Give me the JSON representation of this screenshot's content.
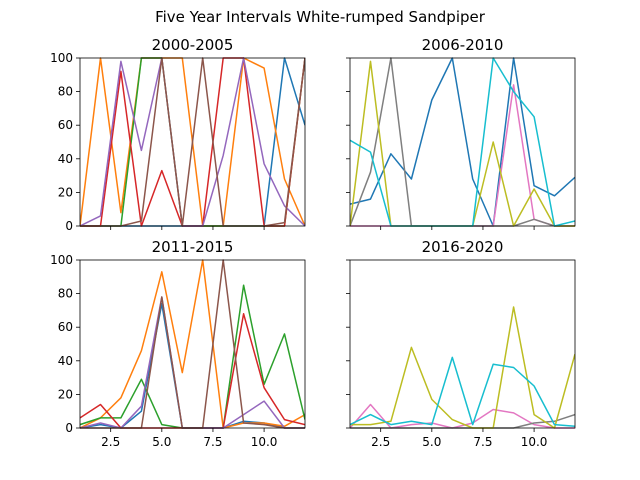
{
  "figure": {
    "title": "Five Year Intervals White-rumped Sandpiper"
  },
  "chart_data": [
    {
      "type": "line",
      "title": "2000-2005",
      "xlim": [
        1,
        12
      ],
      "ylim": [
        0,
        100
      ],
      "x": [
        1,
        2,
        3,
        4,
        5,
        6,
        7,
        8,
        9,
        10,
        11,
        12
      ],
      "series": [
        {
          "color": "#1f77b4",
          "values": [
            0,
            0,
            0,
            0,
            0,
            0,
            0,
            0,
            0,
            0,
            100,
            60
          ]
        },
        {
          "color": "#ff7f0e",
          "values": [
            0,
            100,
            8,
            100,
            100,
            100,
            0,
            0,
            100,
            94,
            28,
            0
          ]
        },
        {
          "color": "#2ca02c",
          "values": [
            0,
            0,
            0,
            100,
            100,
            0,
            0,
            0,
            0,
            0,
            0,
            100
          ]
        },
        {
          "color": "#d62728",
          "values": [
            0,
            0,
            92,
            0,
            33,
            0,
            0,
            100,
            100,
            0,
            0,
            100
          ]
        },
        {
          "color": "#9467bd",
          "values": [
            0,
            6,
            98,
            45,
            100,
            0,
            0,
            42,
            100,
            37,
            12,
            0
          ]
        },
        {
          "color": "#8c564b",
          "values": [
            0,
            0,
            0,
            3,
            100,
            0,
            100,
            0,
            0,
            0,
            2,
            100
          ]
        }
      ]
    },
    {
      "type": "line",
      "title": "2006-2010",
      "xlim": [
        1,
        12
      ],
      "ylim": [
        0,
        100
      ],
      "x": [
        1,
        2,
        3,
        4,
        5,
        6,
        7,
        8,
        9,
        10,
        11,
        12
      ],
      "series": [
        {
          "color": "#1f77b4",
          "values": [
            13,
            16,
            43,
            28,
            75,
            100,
            28,
            0,
            100,
            24,
            18,
            29
          ]
        },
        {
          "color": "#e377c2",
          "values": [
            0,
            0,
            0,
            0,
            0,
            0,
            0,
            0,
            84,
            4,
            0,
            0
          ]
        },
        {
          "color": "#7f7f7f",
          "values": [
            0,
            32,
            100,
            0,
            0,
            0,
            0,
            0,
            0,
            4,
            0,
            0
          ]
        },
        {
          "color": "#bcbd22",
          "values": [
            0,
            98,
            0,
            0,
            0,
            0,
            0,
            50,
            0,
            22,
            0,
            0
          ]
        },
        {
          "color": "#17becf",
          "values": [
            51,
            44,
            0,
            0,
            0,
            0,
            0,
            100,
            80,
            65,
            0,
            3
          ]
        }
      ]
    },
    {
      "type": "line",
      "title": "2011-2015",
      "xlim": [
        1,
        12
      ],
      "ylim": [
        0,
        100
      ],
      "x": [
        1,
        2,
        3,
        4,
        5,
        6,
        7,
        8,
        9,
        10,
        11,
        12
      ],
      "series": [
        {
          "color": "#1f77b4",
          "values": [
            0,
            2,
            0,
            10,
            74,
            0,
            0,
            0,
            4,
            3,
            0,
            0
          ]
        },
        {
          "color": "#ff7f0e",
          "values": [
            0,
            6,
            18,
            46,
            93,
            33,
            100,
            0,
            3,
            3,
            1,
            8
          ]
        },
        {
          "color": "#2ca02c",
          "values": [
            2,
            6,
            6,
            29,
            2,
            0,
            0,
            0,
            85,
            26,
            56,
            5
          ]
        },
        {
          "color": "#d62728",
          "values": [
            6,
            14,
            0,
            0,
            0,
            0,
            0,
            0,
            68,
            24,
            5,
            2
          ]
        },
        {
          "color": "#9467bd",
          "values": [
            0,
            3,
            0,
            13,
            78,
            0,
            0,
            0,
            8,
            16,
            0,
            0
          ]
        },
        {
          "color": "#8c564b",
          "values": [
            0,
            0,
            0,
            0,
            78,
            0,
            0,
            100,
            3,
            2,
            0,
            0
          ]
        }
      ]
    },
    {
      "type": "line",
      "title": "2016-2020",
      "xlim": [
        1,
        12
      ],
      "ylim": [
        0,
        100
      ],
      "x": [
        1,
        2,
        3,
        4,
        5,
        6,
        7,
        8,
        9,
        10,
        11,
        12
      ],
      "series": [
        {
          "color": "#e377c2",
          "values": [
            0,
            14,
            0,
            2,
            3,
            0,
            3,
            11,
            9,
            2,
            0,
            0
          ]
        },
        {
          "color": "#7f7f7f",
          "values": [
            0,
            0,
            0,
            0,
            0,
            0,
            0,
            0,
            0,
            3,
            4,
            8
          ]
        },
        {
          "color": "#bcbd22",
          "values": [
            2,
            2,
            4,
            48,
            17,
            5,
            0,
            0,
            72,
            8,
            0,
            44
          ]
        },
        {
          "color": "#17becf",
          "values": [
            2,
            8,
            2,
            4,
            2,
            42,
            2,
            38,
            36,
            25,
            2,
            1
          ]
        }
      ]
    }
  ]
}
